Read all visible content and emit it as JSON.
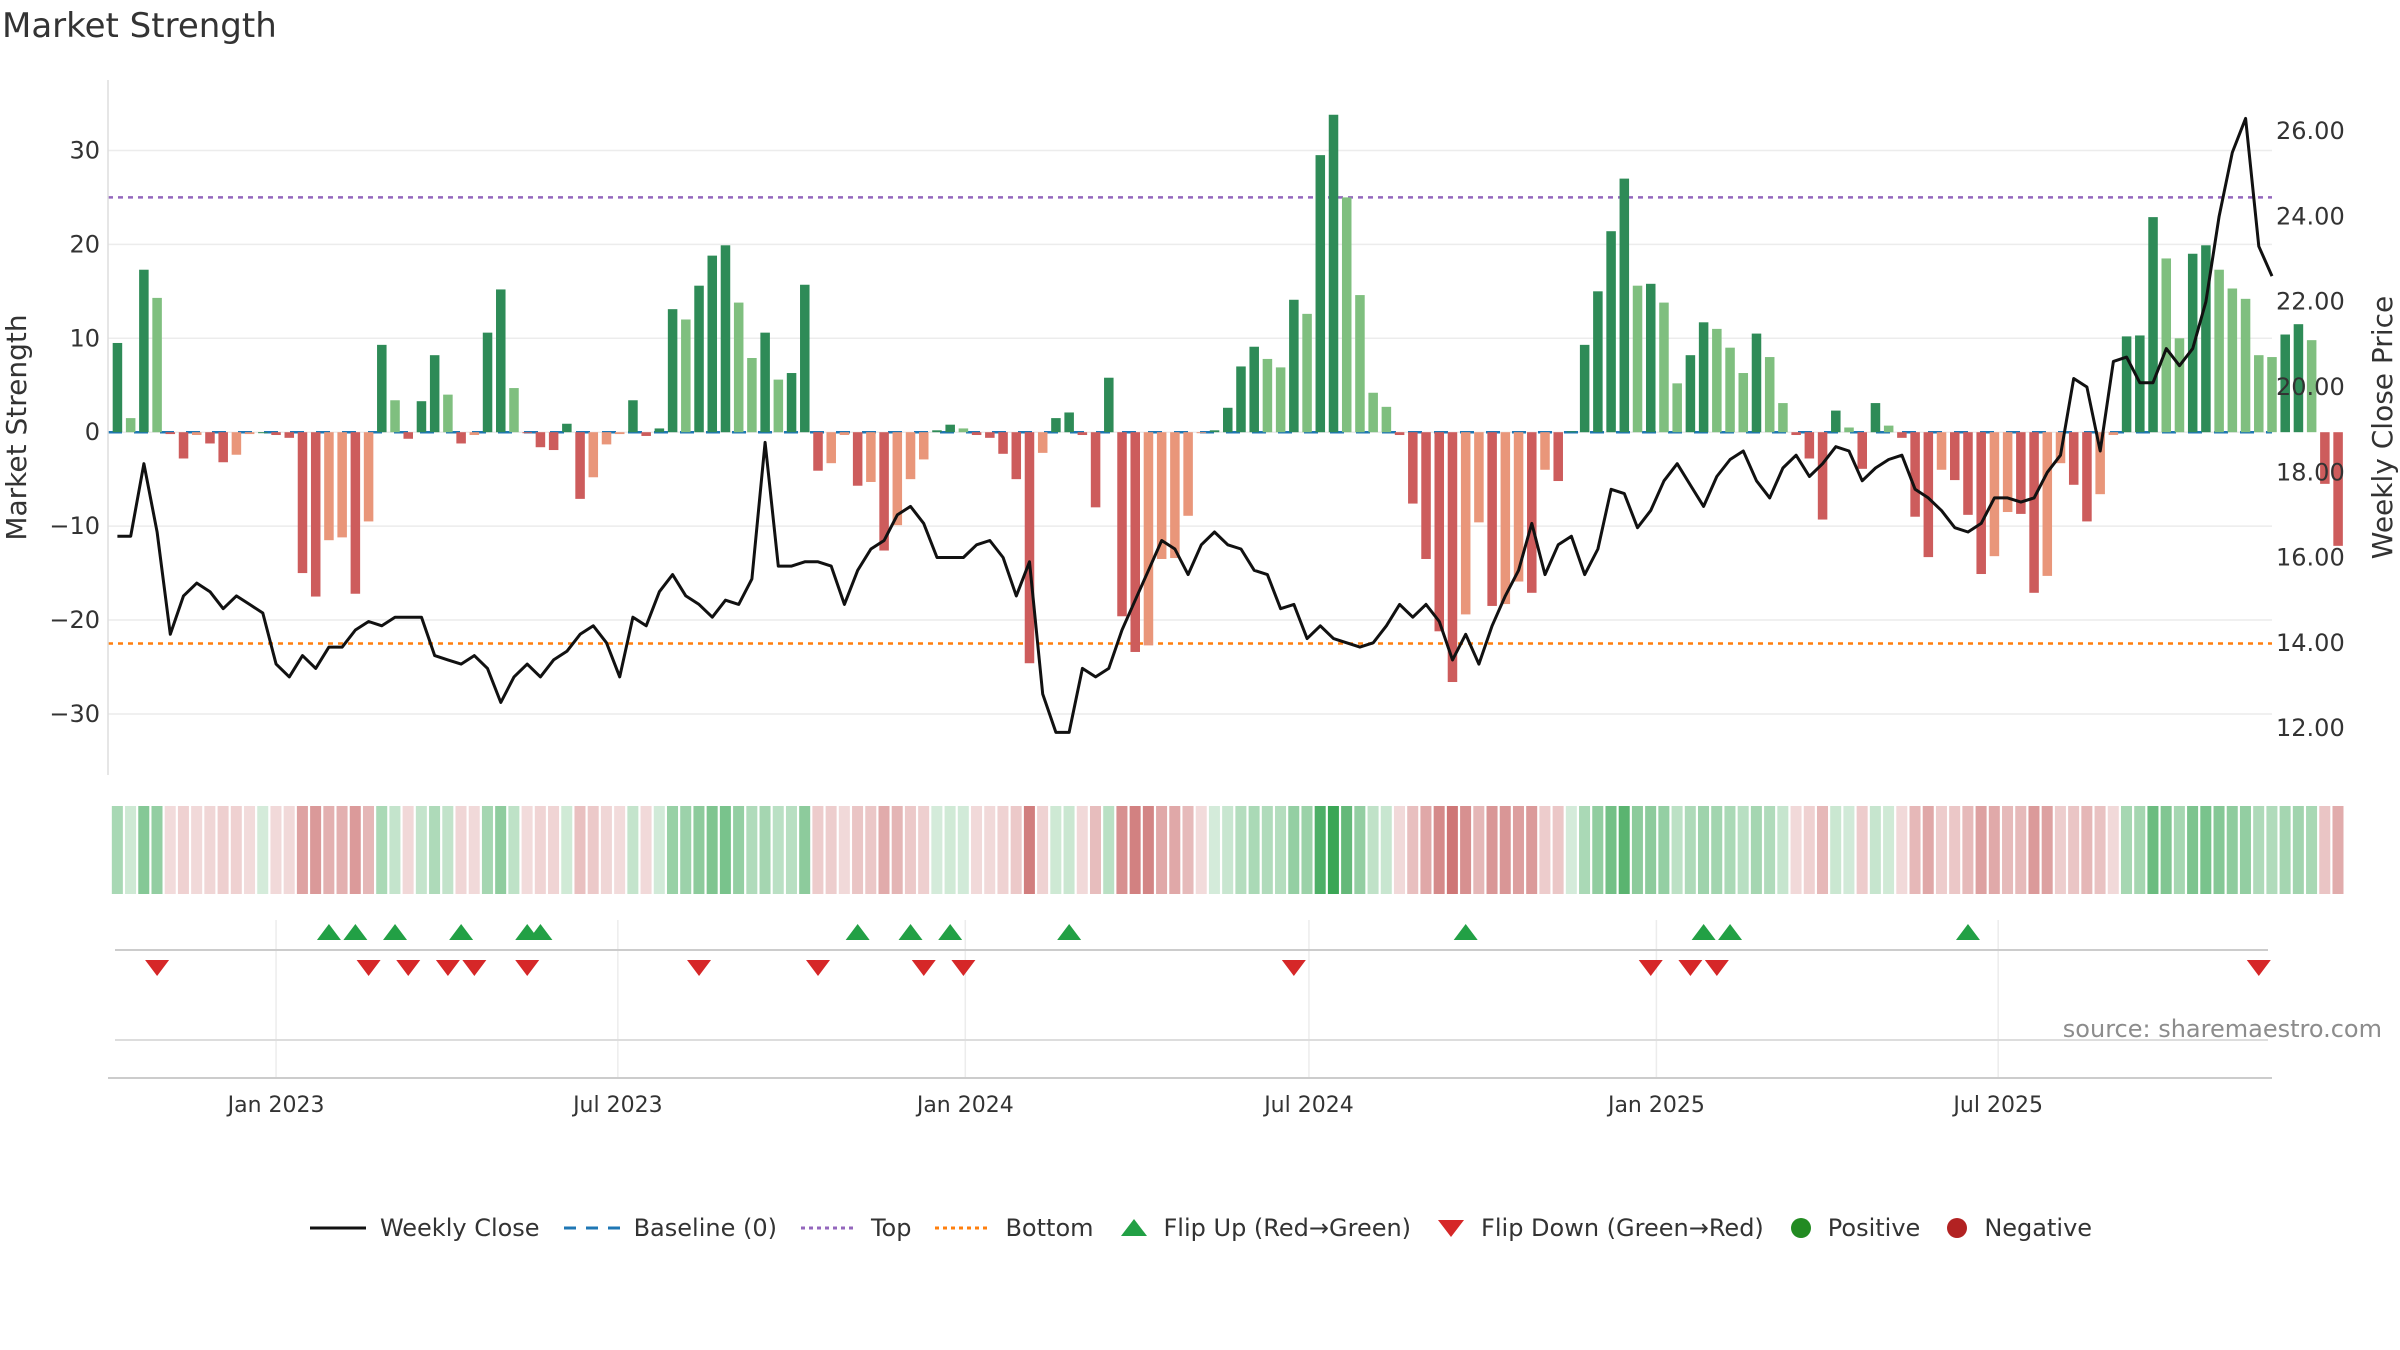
{
  "title": "Market Strength",
  "source": "source: sharemaestro.com",
  "colors": {
    "pos_strong": "#2e8b57",
    "pos_light": "#7fbf7f",
    "neg_strong": "#cd5c5c",
    "neg_light": "#e9967a",
    "close_line": "#111111",
    "baseline": "#1f77b4",
    "top": "#9467bd",
    "bottom": "#ff7f0e",
    "flip_up": "#22a045",
    "flip_down": "#d62728",
    "positive": "#228b22",
    "negative": "#b22222"
  },
  "legend": [
    {
      "key": "close",
      "label": "Weekly Close"
    },
    {
      "key": "baseline",
      "label": "Baseline (0)"
    },
    {
      "key": "top",
      "label": "Top"
    },
    {
      "key": "bottom",
      "label": "Bottom"
    },
    {
      "key": "flip_up",
      "label": "Flip Up (Red→Green)"
    },
    {
      "key": "flip_down",
      "label": "Flip Down (Green→Red)"
    },
    {
      "key": "positive",
      "label": "Positive"
    },
    {
      "key": "negative",
      "label": "Negative"
    }
  ],
  "chart_data": {
    "type": "bar",
    "title": "Market Strength",
    "ylabel": "Market Strength",
    "y2label": "Weekly Close Price",
    "ylim": [
      -36.5,
      37.5
    ],
    "y2lim": [
      10.9,
      27.2
    ],
    "yticks": [
      -30,
      -20,
      -10,
      0,
      10,
      20,
      30
    ],
    "y2ticks": [
      "12.00",
      "14.00",
      "16.00",
      "18.00",
      "20.00",
      "22.00",
      "24.00",
      "26.00"
    ],
    "xlim": [
      "2022-10-04",
      "2025-11-23"
    ],
    "xticks": [
      {
        "date": "2023-01-01",
        "label": "Jan 2023"
      },
      {
        "date": "2023-07-01",
        "label": "Jul 2023"
      },
      {
        "date": "2024-01-01",
        "label": "Jan 2024"
      },
      {
        "date": "2024-07-01",
        "label": "Jul 2024"
      },
      {
        "date": "2025-01-01",
        "label": "Jan 2025"
      },
      {
        "date": "2025-07-01",
        "label": "Jul 2025"
      }
    ],
    "top_level": 25,
    "bottom_level": -22.5,
    "baseline": 0,
    "start_date": "2022-10-09",
    "weekly_strength": [
      9.5,
      1.5,
      17.3,
      14.3,
      -0.2,
      -2.8,
      -0.3,
      -1.2,
      -3.2,
      -2.4,
      -0.2,
      0,
      -0.3,
      -0.6,
      -15,
      -17.5,
      -11.5,
      -11.2,
      -17.2,
      -9.5,
      9.3,
      3.4,
      -0.7,
      3.3,
      8.2,
      4.0,
      -1.2,
      -0.3,
      10.6,
      15.2,
      4.7,
      -0.1,
      -1.6,
      -1.9,
      0.9,
      -7.1,
      -4.8,
      -1.3,
      -0.2,
      3.4,
      -0.4,
      0.4,
      13.1,
      12.0,
      15.6,
      18.8,
      19.9,
      13.8,
      7.9,
      10.6,
      5.6,
      6.3,
      15.7,
      -4.1,
      -3.3,
      -0.3,
      -5.7,
      -5.3,
      -12.6,
      -9.9,
      -5.0,
      -2.9,
      0.2,
      0.8,
      0.4,
      -0.3,
      -0.6,
      -2.3,
      -5.0,
      -24.6,
      -2.2,
      1.5,
      2.1,
      -0.3,
      -8.0,
      5.8,
      -19.6,
      -23.4,
      -22.7,
      -13.5,
      -13.4,
      -8.9,
      -0.1,
      0.2,
      2.6,
      7.0,
      9.1,
      7.8,
      6.9,
      14.1,
      12.6,
      29.5,
      33.8,
      25.0,
      14.6,
      4.2,
      2.7,
      -0.3,
      -7.6,
      -13.5,
      -21.2,
      -26.6,
      -19.4,
      -9.6,
      -18.5,
      -18.3,
      -15.9,
      -17.1,
      -4.0,
      -5.2,
      0.1,
      9.3,
      15.0,
      21.4,
      27.0,
      15.6,
      15.8,
      13.8,
      5.2,
      8.2,
      11.7,
      11.0,
      9.0,
      6.3,
      10.5,
      8.0,
      3.1,
      -0.3,
      -2.8,
      -9.3,
      2.3,
      0.5,
      -3.9,
      3.1,
      0.7,
      -0.6,
      -9.0,
      -13.3,
      -4.0,
      -5.1,
      -8.8,
      -15.1,
      -13.2,
      -8.5,
      -8.7,
      -17.1,
      -15.3,
      -3.3,
      -5.6,
      -9.5,
      -6.6,
      -0.3,
      10.2,
      10.3,
      22.9,
      18.5,
      10.0,
      19.0,
      19.9,
      17.3,
      15.3,
      14.2,
      8.2,
      8.0,
      10.4,
      11.5,
      9.8,
      -5.5,
      -12.1
    ],
    "weekly_close": [
      16.5,
      16.5,
      18.2,
      16.6,
      14.2,
      15.1,
      15.4,
      15.2,
      14.8,
      15.1,
      14.9,
      14.7,
      13.5,
      13.2,
      13.7,
      13.4,
      13.9,
      13.9,
      14.3,
      14.5,
      14.4,
      14.6,
      14.6,
      14.6,
      13.7,
      13.6,
      13.5,
      13.7,
      13.4,
      12.6,
      13.2,
      13.5,
      13.2,
      13.6,
      13.8,
      14.2,
      14.4,
      14.0,
      13.2,
      14.6,
      14.4,
      15.2,
      15.6,
      15.1,
      14.9,
      14.6,
      15.0,
      14.9,
      15.5,
      18.7,
      15.8,
      15.8,
      15.9,
      15.9,
      15.8,
      14.9,
      15.7,
      16.2,
      16.4,
      17.0,
      17.2,
      16.8,
      16.0,
      16.0,
      16.0,
      16.3,
      16.4,
      16.0,
      15.1,
      15.9,
      12.8,
      11.9,
      11.9,
      13.4,
      13.2,
      13.4,
      14.3,
      15.0,
      15.7,
      16.4,
      16.2,
      15.6,
      16.3,
      16.6,
      16.3,
      16.2,
      15.7,
      15.6,
      14.8,
      14.9,
      14.1,
      14.4,
      14.1,
      14.0,
      13.9,
      14.0,
      14.4,
      14.9,
      14.6,
      14.9,
      14.5,
      13.6,
      14.2,
      13.5,
      14.4,
      15.1,
      15.7,
      16.8,
      15.6,
      16.3,
      16.5,
      15.6,
      16.2,
      17.6,
      17.5,
      16.7,
      17.1,
      17.8,
      18.2,
      17.7,
      17.2,
      17.9,
      18.3,
      18.5,
      17.8,
      17.4,
      18.1,
      18.4,
      17.9,
      18.2,
      18.6,
      18.5,
      17.8,
      18.1,
      18.3,
      18.4,
      17.6,
      17.4,
      17.1,
      16.7,
      16.6,
      16.8,
      17.4,
      17.4,
      17.3,
      17.4,
      18.0,
      18.4,
      20.2,
      20.0,
      18.5,
      20.6,
      20.7,
      20.1,
      20.1,
      20.9,
      20.5,
      20.9,
      22.0,
      24.0,
      25.5,
      26.3,
      23.3,
      22.6
    ],
    "flip_up_dates": [
      "2023-01-29",
      "2023-02-12",
      "2023-03-05",
      "2023-04-09",
      "2023-05-14",
      "2023-05-21",
      "2023-11-05",
      "2023-12-03",
      "2023-12-24",
      "2024-02-25",
      "2024-09-22",
      "2025-01-26",
      "2025-02-09",
      "2025-06-15"
    ],
    "flip_down_dates": [
      "2022-10-30",
      "2023-02-19",
      "2023-03-12",
      "2023-04-02",
      "2023-04-16",
      "2023-05-14",
      "2023-08-13",
      "2023-10-15",
      "2023-12-10",
      "2023-12-31",
      "2024-06-23",
      "2024-12-29",
      "2025-01-19",
      "2025-02-02",
      "2025-11-16"
    ]
  }
}
